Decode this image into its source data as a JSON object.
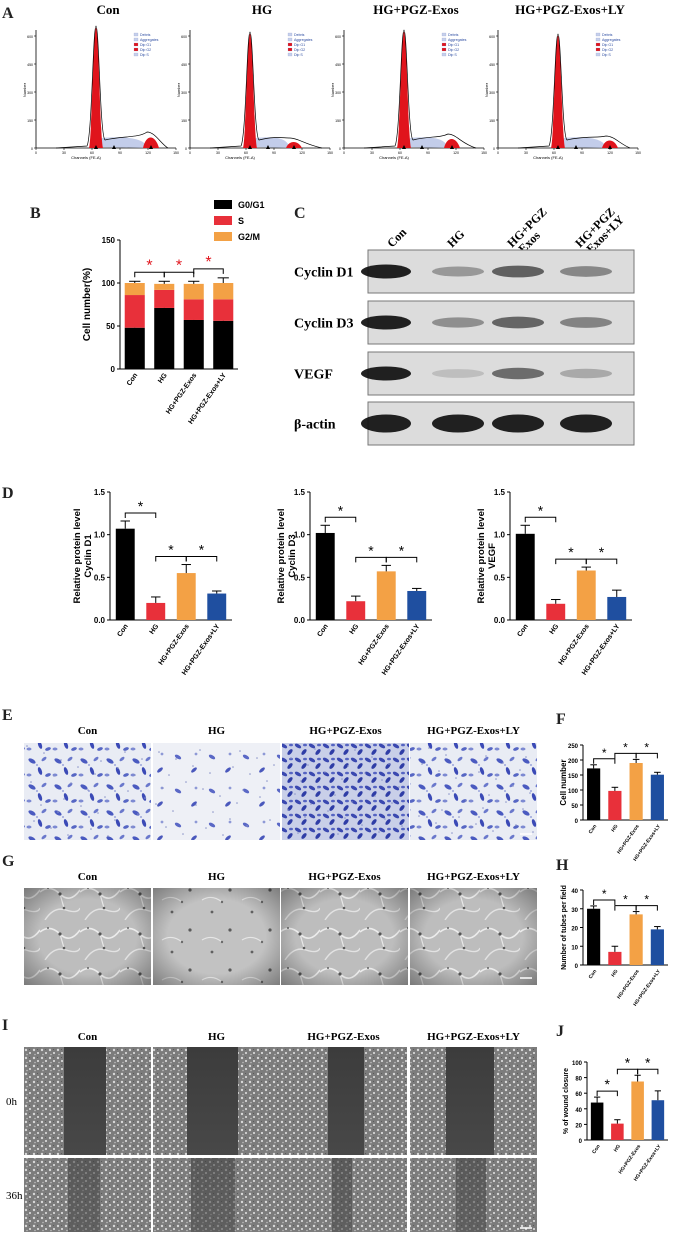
{
  "panel_letters": {
    "A": "A",
    "B": "B",
    "C": "C",
    "D": "D",
    "E": "E",
    "F": "F",
    "G": "G",
    "H": "H",
    "I": "I",
    "J": "J"
  },
  "groups": [
    "Con",
    "HG",
    "HG+PGZ-Exos",
    "HG+PGZ-Exos+LY"
  ],
  "panelA": {
    "xlabel": "Channels (FE-A)",
    "ylabel": "Number",
    "legend": [
      "Debris",
      "Aggregates",
      "Dip G1",
      "Dip G2",
      "Dip S"
    ],
    "colors": {
      "g1": "#e0141c",
      "s": "#b9c4e6",
      "g2": "#e0141c",
      "outline": "#000000"
    }
  },
  "panelB_legend": [
    "G0/G1",
    "S",
    "G2/M"
  ],
  "panelC": {
    "columns": [
      "Con",
      "HG",
      "HG+PGZ\n-Exos",
      "HG+PGZ\n-Exos+LY"
    ],
    "blots": [
      "Cyclin D1",
      "Cyclin D3",
      "VEGF",
      "β-actin"
    ],
    "intensity": [
      [
        1.0,
        0.3,
        0.62,
        0.4
      ],
      [
        1.0,
        0.35,
        0.6,
        0.42
      ],
      [
        1.0,
        0.08,
        0.55,
        0.2
      ],
      [
        1.0,
        1.0,
        1.0,
        1.0
      ]
    ]
  },
  "panelI_rows": [
    "0h",
    "36h"
  ],
  "colors": {
    "con": "#000000",
    "hg": "#e8303a",
    "exos": "#f3a145",
    "ly": "#1f4fa0",
    "star_red": "#e0141c"
  },
  "chart_data": [
    {
      "id": "B",
      "type": "bar",
      "stacked": true,
      "categories": [
        "Con",
        "HG",
        "HG+PGZ-Exos",
        "HG+PGZ-Exos+LY"
      ],
      "ylabel": "Cell number(%)",
      "ylim": [
        0,
        150
      ],
      "yticks": [
        0,
        50,
        100,
        150
      ],
      "series": [
        {
          "name": "G0/G1",
          "color": "#000000",
          "values": [
            48,
            71,
            57,
            56
          ],
          "errors": [
            3,
            3,
            2,
            3
          ]
        },
        {
          "name": "S",
          "color": "#e8303a",
          "values": [
            38,
            21,
            24,
            25
          ],
          "errors": [
            0,
            0,
            0,
            0
          ]
        },
        {
          "name": "G2/M",
          "color": "#f3a145",
          "values": [
            14,
            7,
            18,
            19
          ],
          "errors": [
            2,
            3,
            3,
            6
          ]
        }
      ],
      "significance": [
        {
          "from": 0,
          "to": 1,
          "label": "*"
        },
        {
          "from": 1,
          "to": 2,
          "label": "*"
        },
        {
          "from": 2,
          "to": 3,
          "label": "*"
        }
      ]
    },
    {
      "id": "D1",
      "type": "bar",
      "categories": [
        "Con",
        "HG",
        "HG+PGZ-Exos",
        "HG+PGZ-Exos+LY"
      ],
      "ylabel": "Relative protein level\nCyclin D1",
      "ylim": [
        0,
        1.5
      ],
      "yticks": [
        0.0,
        0.5,
        1.0,
        1.5
      ],
      "values": [
        1.07,
        0.2,
        0.55,
        0.31
      ],
      "errors": [
        0.09,
        0.07,
        0.1,
        0.03
      ],
      "significance": [
        {
          "from": 0,
          "to": 1,
          "label": "*"
        },
        {
          "from": 1,
          "to": 2,
          "label": "*"
        },
        {
          "from": 2,
          "to": 3,
          "label": "*"
        }
      ]
    },
    {
      "id": "D2",
      "type": "bar",
      "categories": [
        "Con",
        "HG",
        "HG+PGZ-Exos",
        "HG+PGZ-Exos+LY"
      ],
      "ylabel": "Relative protein level\nCyclin D3",
      "ylim": [
        0,
        1.5
      ],
      "yticks": [
        0.0,
        0.5,
        1.0,
        1.5
      ],
      "values": [
        1.02,
        0.22,
        0.57,
        0.34
      ],
      "errors": [
        0.09,
        0.06,
        0.07,
        0.03
      ],
      "significance": [
        {
          "from": 0,
          "to": 1,
          "label": "*"
        },
        {
          "from": 1,
          "to": 2,
          "label": "*"
        },
        {
          "from": 2,
          "to": 3,
          "label": "*"
        }
      ]
    },
    {
      "id": "D3",
      "type": "bar",
      "categories": [
        "Con",
        "HG",
        "HG+PGZ-Exos",
        "HG+PGZ-Exos+LY"
      ],
      "ylabel": "Relative protein level\nVEGF",
      "ylim": [
        0,
        1.5
      ],
      "yticks": [
        0.0,
        0.5,
        1.0,
        1.5
      ],
      "values": [
        1.01,
        0.19,
        0.58,
        0.27
      ],
      "errors": [
        0.1,
        0.05,
        0.04,
        0.08
      ],
      "significance": [
        {
          "from": 0,
          "to": 1,
          "label": "*"
        },
        {
          "from": 1,
          "to": 2,
          "label": "*"
        },
        {
          "from": 2,
          "to": 3,
          "label": "*"
        }
      ]
    },
    {
      "id": "F",
      "type": "bar",
      "categories": [
        "Con",
        "HG",
        "HG+PGZ-Exos",
        "HG+PGZ-Exos+LY"
      ],
      "ylabel": "Cell number",
      "ylim": [
        0,
        250
      ],
      "yticks": [
        0,
        50,
        100,
        150,
        200,
        250
      ],
      "values": [
        172,
        97,
        190,
        151
      ],
      "errors": [
        12,
        12,
        12,
        8
      ],
      "significance": [
        {
          "from": 0,
          "to": 1,
          "label": "*"
        },
        {
          "from": 1,
          "to": 2,
          "label": "*"
        },
        {
          "from": 2,
          "to": 3,
          "label": "*"
        }
      ]
    },
    {
      "id": "H",
      "type": "bar",
      "categories": [
        "Con",
        "HG",
        "HG+PGZ-Exos",
        "HG+PGZ-Exos+LY"
      ],
      "ylabel": "Number of tubes per field",
      "ylim": [
        0,
        40
      ],
      "yticks": [
        0,
        10,
        20,
        30,
        40
      ],
      "values": [
        30,
        7,
        27,
        19
      ],
      "errors": [
        1.5,
        3,
        1.5,
        1.5
      ],
      "significance": [
        {
          "from": 0,
          "to": 1,
          "label": "*"
        },
        {
          "from": 1,
          "to": 2,
          "label": "*"
        },
        {
          "from": 2,
          "to": 3,
          "label": "*"
        }
      ]
    },
    {
      "id": "J",
      "type": "bar",
      "categories": [
        "Con",
        "HG",
        "HG+PGZ-Exos",
        "HG+PGZ-Exos+LY"
      ],
      "ylabel": "% of wound closure",
      "ylim": [
        0,
        100
      ],
      "yticks": [
        0,
        20,
        40,
        60,
        80,
        100
      ],
      "values": [
        48,
        21,
        75,
        51
      ],
      "errors": [
        7,
        5,
        8,
        12
      ],
      "significance": [
        {
          "from": 0,
          "to": 1,
          "label": "*"
        },
        {
          "from": 1,
          "to": 2,
          "label": "*"
        },
        {
          "from": 2,
          "to": 3,
          "label": "*"
        }
      ]
    }
  ]
}
